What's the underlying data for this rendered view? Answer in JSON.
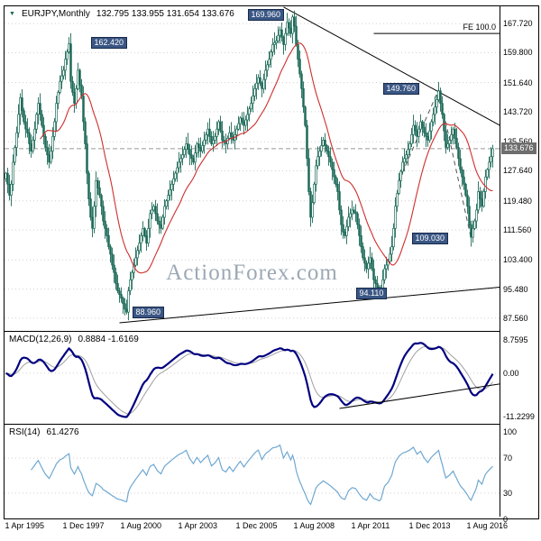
{
  "header": {
    "title": "EURJPY,Monthly",
    "ohlc": "132.795 133.955 131.654 133.676"
  },
  "icons": {
    "title_marker": "▼"
  },
  "watermark": "ActionForex.com",
  "panels": {
    "macd": {
      "label": "MACD(12,26,9)",
      "values": "0.8884 -1.6169"
    },
    "rsi": {
      "label": "RSI(14)",
      "values": "61.4276"
    }
  },
  "colors": {
    "background": "#ffffff",
    "frame": "#000000",
    "grid": "#d0d0d0",
    "candle": "#1d6a58",
    "ma_line": "#cf2e2e",
    "macd_line": "#000080",
    "macd_signal": "#a0a0a0",
    "rsi_line": "#6fa8d2",
    "annotation_box": "#3a5684",
    "price_tag": "#6e6e6e",
    "watermark": "#9ca8b4",
    "trendline": "#000000",
    "dashed_projection": "#555555",
    "current_price_line": "#999999"
  },
  "chart_data": [
    {
      "type": "candlestick",
      "symbol": "EURJPY",
      "timeframe": "Monthly",
      "current": {
        "open": 132.795,
        "high": 133.955,
        "low": 131.654,
        "close": 133.676
      },
      "ylim": [
        84.1,
        172.4
      ],
      "y_ticks": [
        "167.720",
        "159.800",
        "151.640",
        "143.720",
        "135.560",
        "127.640",
        "119.480",
        "111.560",
        "103.400",
        "95.480",
        "87.560"
      ],
      "x_ticks": [
        {
          "month": 0,
          "label": "1 Apr 1995"
        },
        {
          "month": 32,
          "label": "1 Dec 1997"
        },
        {
          "month": 64,
          "label": "1 Aug 2000"
        },
        {
          "month": 96,
          "label": "1 Apr 2003"
        },
        {
          "month": 128,
          "label": "1 Dec 2005"
        },
        {
          "month": 160,
          "label": "1 Aug 2008"
        },
        {
          "month": 192,
          "label": "1 Apr 2011"
        },
        {
          "month": 224,
          "label": "1 Dec 2013"
        },
        {
          "month": 256,
          "label": "1 Aug 2016"
        }
      ],
      "ma_period": 20,
      "closes": [
        127,
        124,
        121,
        124,
        130,
        134,
        138,
        143,
        147.5,
        144,
        141,
        139,
        138,
        135,
        133,
        136,
        139,
        143,
        146,
        143,
        140,
        137,
        134,
        132,
        130,
        133,
        137,
        141,
        146,
        149,
        152,
        153.5,
        155,
        158,
        160,
        162.2,
        152,
        149,
        146,
        150,
        155,
        151,
        148,
        141,
        135,
        127,
        120,
        115,
        112,
        118,
        125,
        123,
        121,
        118,
        114,
        112,
        110,
        107,
        105,
        102,
        100,
        97,
        95,
        94,
        93,
        91.5,
        90,
        89.2,
        95,
        98,
        100,
        102,
        104,
        106,
        108,
        110,
        112,
        110,
        108,
        112,
        116,
        117,
        118,
        116,
        114,
        113,
        112,
        115,
        118,
        119.5,
        121,
        122.5,
        124,
        125.5,
        127,
        128.5,
        130,
        131,
        132,
        133.5,
        135,
        133.5,
        132,
        131,
        130,
        132.5,
        135,
        134,
        133,
        134.5,
        136,
        137.5,
        139,
        137,
        135,
        136,
        137,
        139,
        141,
        138.5,
        136,
        135.5,
        135,
        136.5,
        138,
        137,
        136,
        137.5,
        139,
        140.5,
        142,
        141,
        140,
        141.5,
        143,
        144.5,
        146,
        148,
        150,
        151.5,
        153,
        151.5,
        150,
        152.5,
        155,
        156.5,
        158,
        160,
        162,
        162.5,
        163,
        164.5,
        166,
        164,
        162,
        165,
        168,
        166.5,
        165,
        169.5,
        167,
        162,
        158,
        154,
        150,
        145,
        140,
        131,
        122,
        115,
        119,
        124,
        129,
        131.5,
        133,
        134.5,
        136,
        134.5,
        133,
        131.5,
        130,
        128,
        126,
        124,
        122,
        117,
        113,
        111,
        110,
        112.5,
        115,
        116,
        117,
        116.5,
        116,
        113,
        110,
        107,
        104,
        102.5,
        101,
        102.5,
        104,
        101,
        98,
        97,
        96,
        94.4,
        95,
        98,
        101,
        102,
        103,
        105,
        107,
        112,
        118,
        121.5,
        125,
        127.5,
        130,
        131,
        132,
        133.5,
        135,
        137.5,
        140,
        138.5,
        137,
        139,
        141,
        139.5,
        138,
        137,
        136,
        138.5,
        141,
        143,
        145,
        147,
        149.4,
        146,
        143,
        138.5,
        134,
        135,
        136,
        137.5,
        139,
        136.5,
        134,
        131,
        128,
        126,
        124,
        121,
        118,
        113,
        109.6,
        112,
        114,
        117,
        122,
        120,
        118,
        122,
        126,
        128,
        130,
        131.5,
        133.676
      ],
      "annotations": {
        "price_labels": [
          {
            "text": "169.960",
            "month": 159,
            "price": 169.96,
            "dx": -50
          },
          {
            "text": "162.420",
            "month": 35,
            "price": 162.42,
            "dx": 24
          },
          {
            "text": "149.760",
            "month": 240,
            "price": 149.76,
            "dx": -62
          },
          {
            "text": "109.030",
            "month": 258,
            "price": 109.03,
            "dx": -66
          },
          {
            "text": "94.110",
            "month": 207,
            "price": 94.11,
            "dx": -26
          },
          {
            "text": "88.960",
            "month": 67,
            "price": 88.96,
            "dx": 6
          }
        ],
        "trendlines": [
          {
            "from": {
              "m": 154,
              "p": 172.2
            },
            "to": {
              "m": 274,
              "p": 140.0
            },
            "dashed": false
          },
          {
            "from": {
              "m": 63,
              "p": 86.3
            },
            "to": {
              "m": 274,
              "p": 96.0
            },
            "dashed": false
          },
          {
            "from": {
              "m": 218,
              "p": 125.0
            },
            "to": {
              "m": 240,
              "p": 149.76
            },
            "dashed": true
          },
          {
            "from": {
              "m": 240,
              "p": 149.76
            },
            "to": {
              "m": 258,
              "p": 109.2
            },
            "dashed": true
          }
        ],
        "fib_line": {
          "label": "FE 100.0",
          "price": 165.0,
          "from_month": 204
        },
        "current_price": {
          "value": 133.676,
          "label": "133.676"
        }
      }
    },
    {
      "type": "line",
      "indicator": "MACD",
      "label": "MACD(12,26,9)",
      "params": {
        "fast": 12,
        "slow": 26,
        "signal": 9
      },
      "current_values": [
        0.8884,
        -1.6169
      ],
      "ylim": [
        -13.2,
        10.8
      ],
      "y_ticks": [
        {
          "v": 8.7595,
          "label": "8.7595"
        },
        {
          "v": 0,
          "label": "0.00"
        },
        {
          "v": -11.2299,
          "label": "-11.2299"
        }
      ],
      "trendline": {
        "from": {
          "m": 185,
          "v": -9.2
        },
        "to": {
          "m": 274,
          "v": -2.8
        }
      }
    },
    {
      "type": "line",
      "indicator": "RSI",
      "label": "RSI(14)",
      "period": 14,
      "current_value": 61.4276,
      "ylim": [
        0,
        100
      ],
      "y_ticks": [
        {
          "v": 100,
          "label": "100"
        },
        {
          "v": 70,
          "label": "70"
        },
        {
          "v": 30,
          "label": "30"
        },
        {
          "v": 0,
          "label": "0"
        }
      ],
      "levels": [
        70,
        30
      ]
    }
  ]
}
